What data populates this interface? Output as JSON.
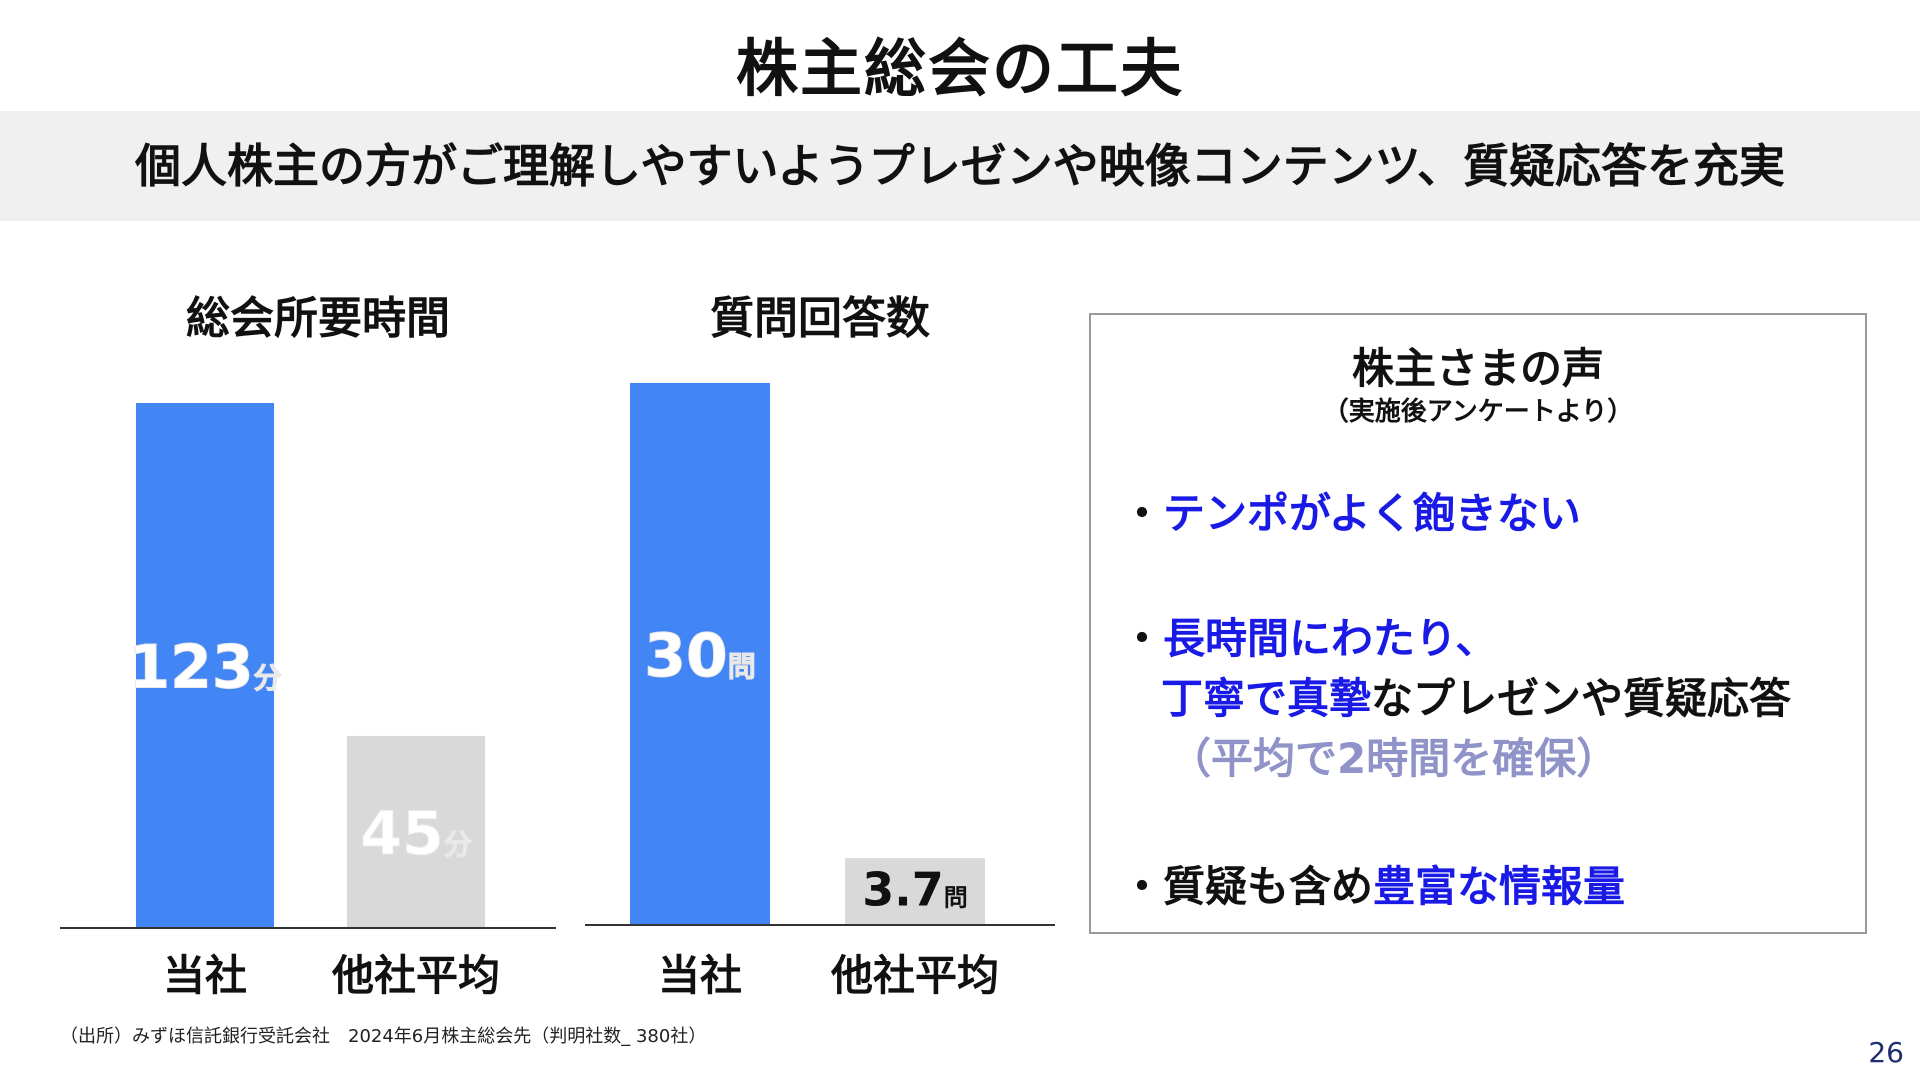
{
  "title": "株主総会の工夫",
  "subtitle": "個人株主の方がご理解しやすいようプレゼンや映像コンテンツ、質疑応答を充実",
  "colors": {
    "accent": "#4285f4",
    "other": "#d9d9d9",
    "emphasis": "#1a1ae6",
    "muted": "#8f93c8"
  },
  "chart_data": [
    {
      "type": "bar",
      "title": "総会所要時間",
      "categories": [
        "当社",
        "他社平均"
      ],
      "values": [
        123,
        45
      ],
      "labels": [
        "123",
        "45"
      ],
      "unit": "分",
      "colors": [
        "#4285f4",
        "#d9d9d9"
      ],
      "ylim": [
        0,
        123
      ]
    },
    {
      "type": "bar",
      "title": "質問回答数",
      "categories": [
        "当社",
        "他社平均"
      ],
      "values": [
        30,
        3.7
      ],
      "labels": [
        "30",
        "3.7"
      ],
      "unit": "問",
      "colors": [
        "#4285f4",
        "#d9d9d9"
      ],
      "ylim": [
        0,
        30
      ]
    }
  ],
  "voices": {
    "title": "株主さまの声",
    "subtitle": "（実施後アンケートより）",
    "items": [
      {
        "bullet": "・",
        "line1_blue": "テンポがよく飽きない"
      },
      {
        "bullet": "・",
        "line1_blue": "長時間にわたり、",
        "line2_blue": "丁寧で真摯",
        "line2_rest": "なプレゼンや質疑応答",
        "line3_gray": "（平均で2時間を確保）"
      },
      {
        "bullet": "・",
        "line1_black": "質疑も含め",
        "line1_blue": "豊富な情報量"
      }
    ]
  },
  "footnote": "（出所）みずほ信託銀行受託会社　2024年6月株主総会先（判明社数_ 380社）",
  "page_number": "26"
}
